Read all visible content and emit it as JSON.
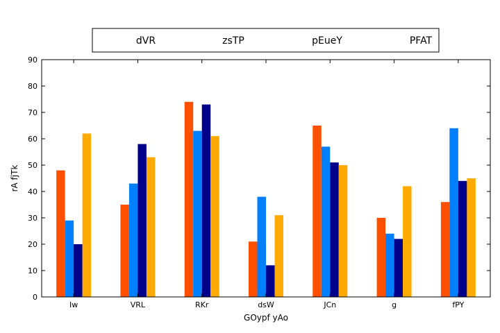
{
  "chart_data": {
    "type": "bar",
    "categories": [
      "Iw",
      "VRL",
      "RKr",
      "dsW",
      "JCn",
      "g",
      "fPY"
    ],
    "series": [
      {
        "name": "dVR",
        "color": "#ff5000",
        "values": [
          48,
          35,
          74,
          21,
          65,
          30,
          36
        ]
      },
      {
        "name": "zsTP",
        "color": "#0080ff",
        "values": [
          29,
          43,
          63,
          38,
          57,
          24,
          64
        ]
      },
      {
        "name": "pEueY",
        "color": "#00008b",
        "values": [
          20,
          58,
          73,
          12,
          51,
          22,
          44
        ]
      },
      {
        "name": "PFAT",
        "color": "#ffaa00",
        "values": [
          62,
          53,
          61,
          31,
          50,
          42,
          45
        ]
      }
    ],
    "xlabel": "GOypf yAo",
    "ylabel": "rA fjTk",
    "ylim": [
      0,
      90
    ],
    "yticks": [
      0,
      10,
      20,
      30,
      40,
      50,
      60,
      70,
      80,
      90
    ],
    "grid": false,
    "legend": "top-center"
  }
}
